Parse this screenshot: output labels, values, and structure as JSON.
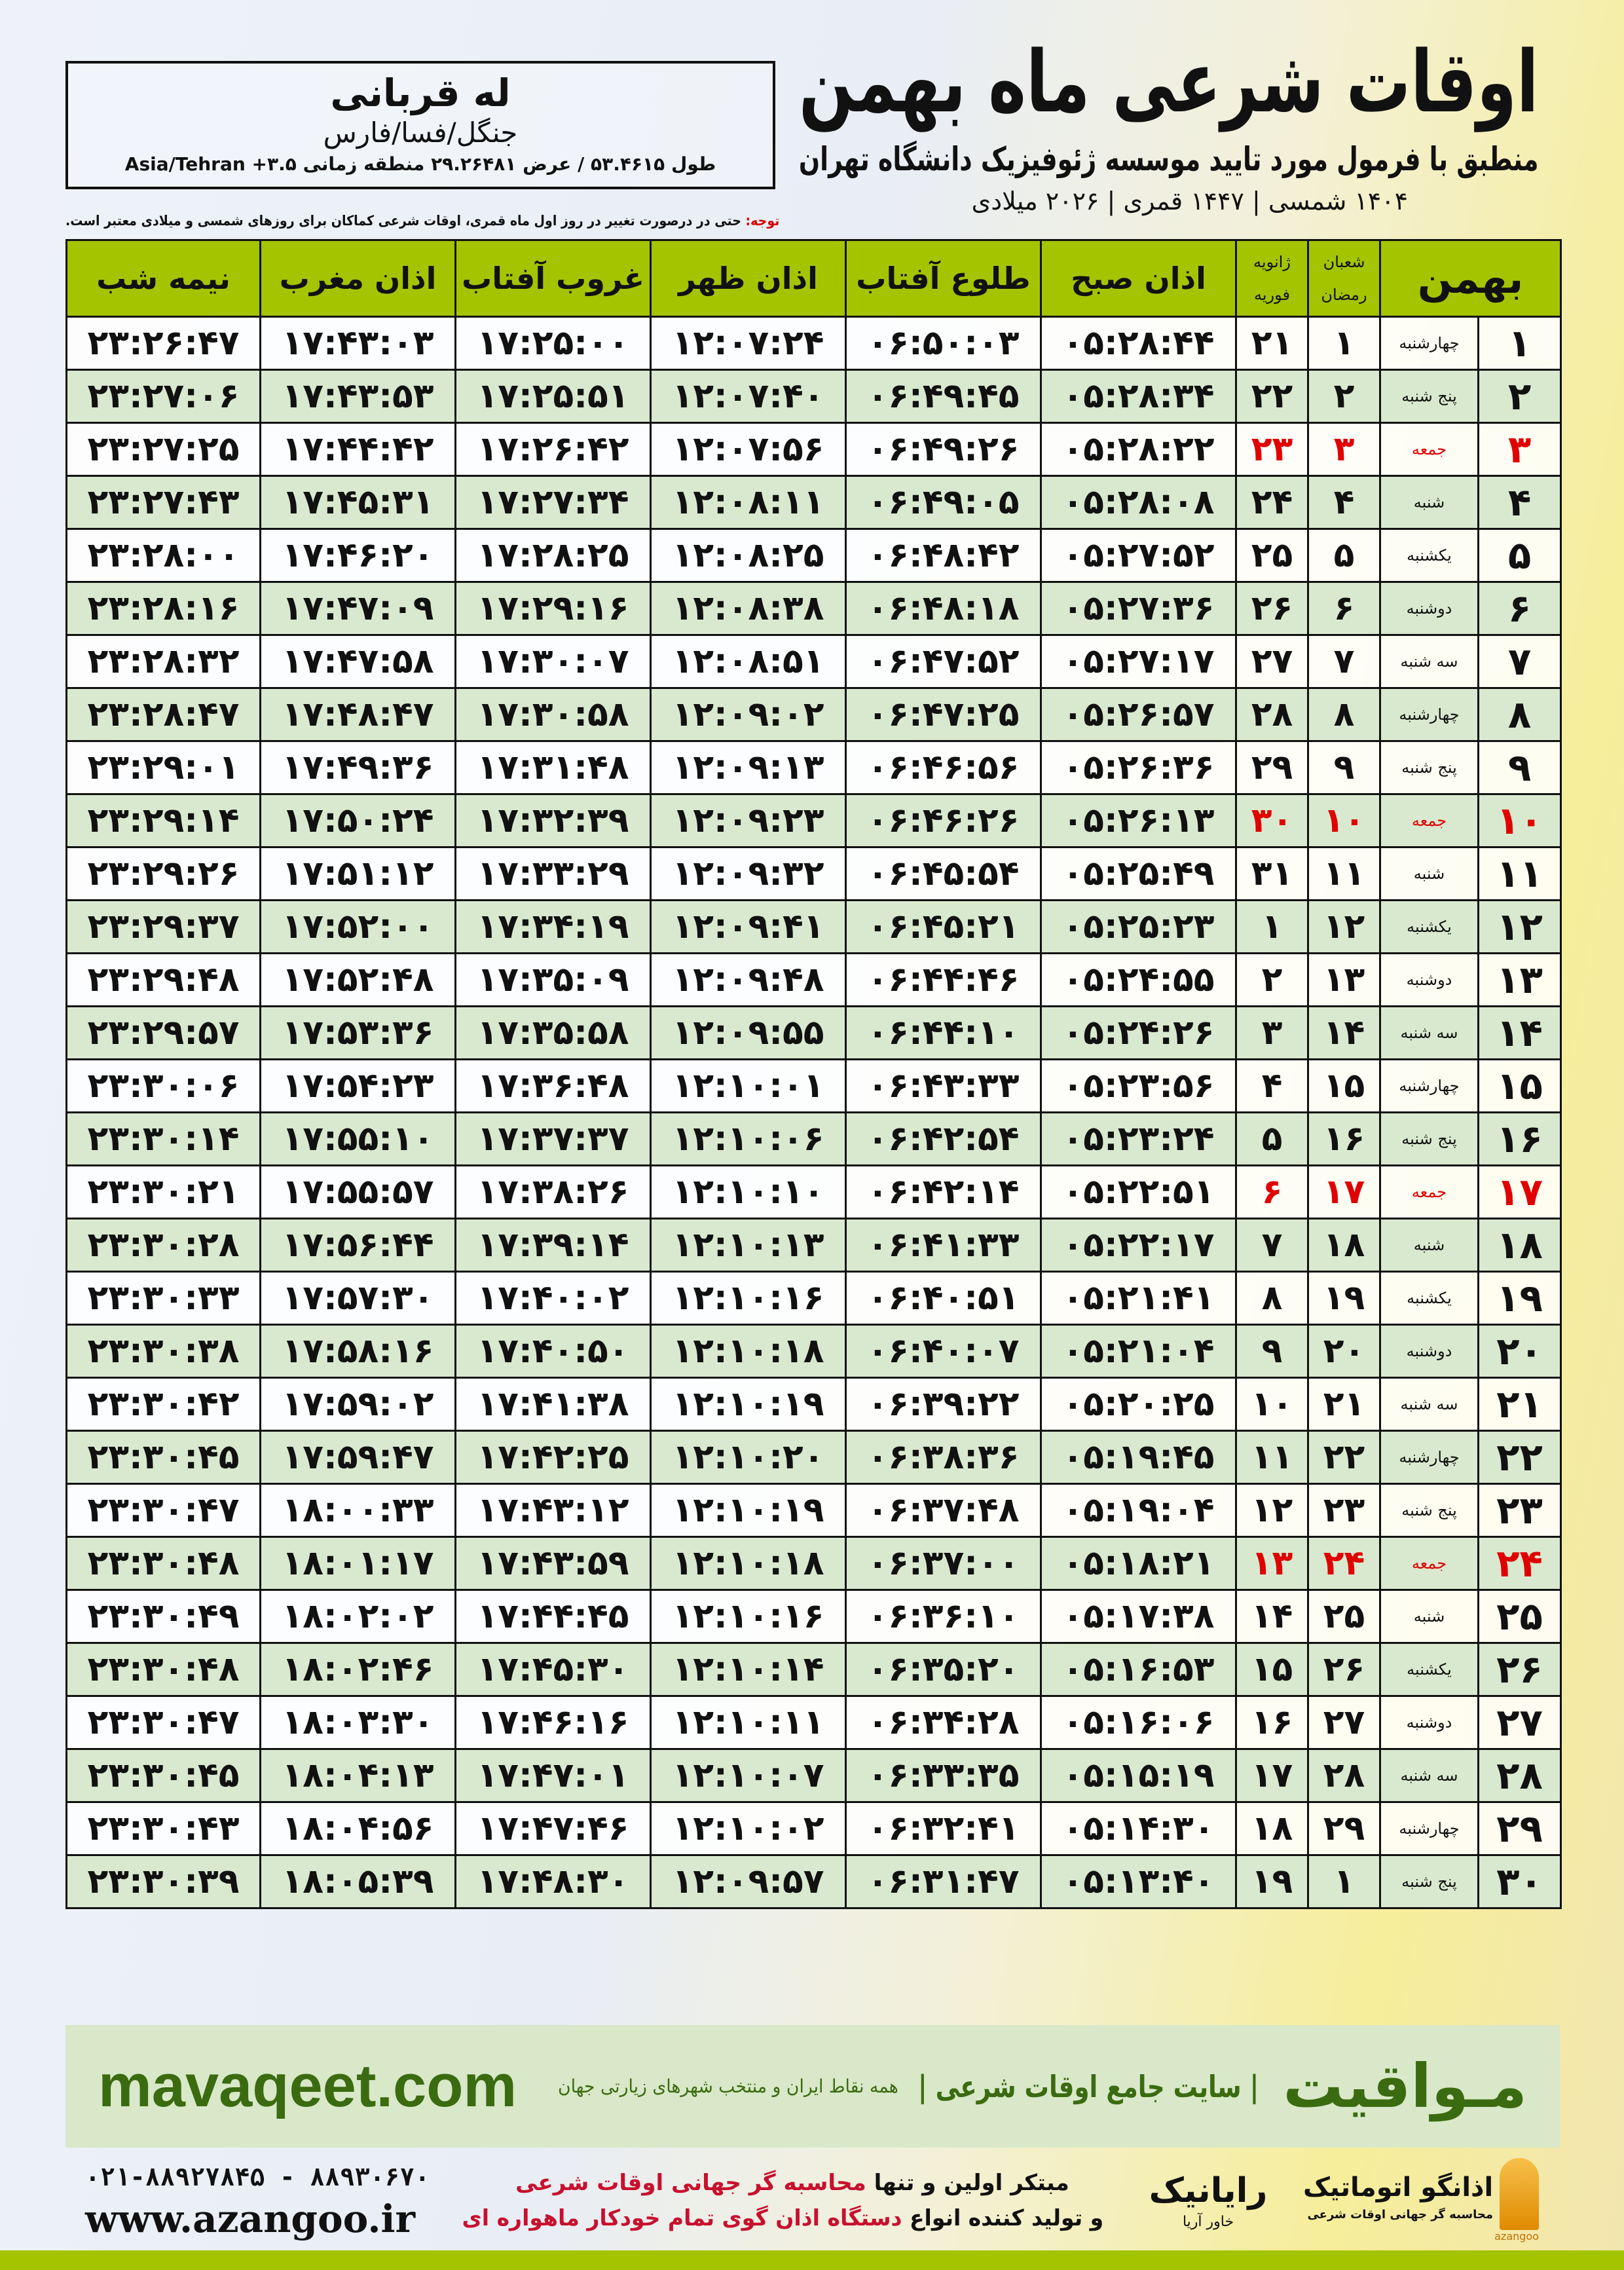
{
  "header": {
    "title": "اوقات شرعی ماه بهمن",
    "subtitle": "منطبق با فرمول مورد تایید موسسه ژئوفیزیک دانشگاه تهران",
    "dates": "۱۴۰۴ شمسی | ۱۴۴۷ قمری | ۲۰۲۶ میلادی"
  },
  "location": {
    "name": "له قربانی",
    "region": "جنگل/فسا/فارس",
    "coords": "طول ۵۳.۴۶۱۵ / عرض ۲۹.۲۶۴۸۱ منطقه زمانی ۳.۵+ Asia/Tehran"
  },
  "note": {
    "label": "توجه:",
    "text": " حتی در درصورت تغییر در روز اول ماه قمری، اوقات شرعی کماکان برای روزهای شمسی و میلادی معتبر است."
  },
  "colors": {
    "header_green": "#a5c400",
    "row_green": "#d9e9cf",
    "friday_red": "#e00000",
    "brand_green": "#3b6b10"
  },
  "table": {
    "columns": {
      "month": "بهمن",
      "hijri": [
        "شعبان",
        "رمضان"
      ],
      "greg": [
        "ژانویه",
        "فوریه"
      ],
      "fajr": "اذان صبح",
      "sunrise": "طلوع آفتاب",
      "dhuhr": "اذان ظهر",
      "sunset": "غروب آفتاب",
      "maghrib": "اذان مغرب",
      "midnight": "نیمه شب"
    },
    "rows": [
      {
        "day": "۱",
        "wd": "چهارشنبه",
        "hij": "۱",
        "greg": "۲۱",
        "fajr": "۰۵:۲۸:۴۴",
        "sunrise": "۰۶:۵۰:۰۳",
        "dhuhr": "۱۲:۰۷:۲۴",
        "sunset": "۱۷:۲۵:۰۰",
        "maghrib": "۱۷:۴۳:۰۳",
        "midnight": "۲۳:۲۶:۴۷",
        "friday": false
      },
      {
        "day": "۲",
        "wd": "پنج شنبه",
        "hij": "۲",
        "greg": "۲۲",
        "fajr": "۰۵:۲۸:۳۴",
        "sunrise": "۰۶:۴۹:۴۵",
        "dhuhr": "۱۲:۰۷:۴۰",
        "sunset": "۱۷:۲۵:۵۱",
        "maghrib": "۱۷:۴۳:۵۳",
        "midnight": "۲۳:۲۷:۰۶",
        "friday": false
      },
      {
        "day": "۳",
        "wd": "جمعه",
        "hij": "۳",
        "greg": "۲۳",
        "fajr": "۰۵:۲۸:۲۲",
        "sunrise": "۰۶:۴۹:۲۶",
        "dhuhr": "۱۲:۰۷:۵۶",
        "sunset": "۱۷:۲۶:۴۲",
        "maghrib": "۱۷:۴۴:۴۲",
        "midnight": "۲۳:۲۷:۲۵",
        "friday": true
      },
      {
        "day": "۴",
        "wd": "شنبه",
        "hij": "۴",
        "greg": "۲۴",
        "fajr": "۰۵:۲۸:۰۸",
        "sunrise": "۰۶:۴۹:۰۵",
        "dhuhr": "۱۲:۰۸:۱۱",
        "sunset": "۱۷:۲۷:۳۴",
        "maghrib": "۱۷:۴۵:۳۱",
        "midnight": "۲۳:۲۷:۴۳",
        "friday": false
      },
      {
        "day": "۵",
        "wd": "یکشنبه",
        "hij": "۵",
        "greg": "۲۵",
        "fajr": "۰۵:۲۷:۵۲",
        "sunrise": "۰۶:۴۸:۴۲",
        "dhuhr": "۱۲:۰۸:۲۵",
        "sunset": "۱۷:۲۸:۲۵",
        "maghrib": "۱۷:۴۶:۲۰",
        "midnight": "۲۳:۲۸:۰۰",
        "friday": false
      },
      {
        "day": "۶",
        "wd": "دوشنبه",
        "hij": "۶",
        "greg": "۲۶",
        "fajr": "۰۵:۲۷:۳۶",
        "sunrise": "۰۶:۴۸:۱۸",
        "dhuhr": "۱۲:۰۸:۳۸",
        "sunset": "۱۷:۲۹:۱۶",
        "maghrib": "۱۷:۴۷:۰۹",
        "midnight": "۲۳:۲۸:۱۶",
        "friday": false
      },
      {
        "day": "۷",
        "wd": "سه شنبه",
        "hij": "۷",
        "greg": "۲۷",
        "fajr": "۰۵:۲۷:۱۷",
        "sunrise": "۰۶:۴۷:۵۲",
        "dhuhr": "۱۲:۰۸:۵۱",
        "sunset": "۱۷:۳۰:۰۷",
        "maghrib": "۱۷:۴۷:۵۸",
        "midnight": "۲۳:۲۸:۳۲",
        "friday": false
      },
      {
        "day": "۸",
        "wd": "چهارشنبه",
        "hij": "۸",
        "greg": "۲۸",
        "fajr": "۰۵:۲۶:۵۷",
        "sunrise": "۰۶:۴۷:۲۵",
        "dhuhr": "۱۲:۰۹:۰۲",
        "sunset": "۱۷:۳۰:۵۸",
        "maghrib": "۱۷:۴۸:۴۷",
        "midnight": "۲۳:۲۸:۴۷",
        "friday": false
      },
      {
        "day": "۹",
        "wd": "پنج شنبه",
        "hij": "۹",
        "greg": "۲۹",
        "fajr": "۰۵:۲۶:۳۶",
        "sunrise": "۰۶:۴۶:۵۶",
        "dhuhr": "۱۲:۰۹:۱۳",
        "sunset": "۱۷:۳۱:۴۸",
        "maghrib": "۱۷:۴۹:۳۶",
        "midnight": "۲۳:۲۹:۰۱",
        "friday": false
      },
      {
        "day": "۱۰",
        "wd": "جمعه",
        "hij": "۱۰",
        "greg": "۳۰",
        "fajr": "۰۵:۲۶:۱۳",
        "sunrise": "۰۶:۴۶:۲۶",
        "dhuhr": "۱۲:۰۹:۲۳",
        "sunset": "۱۷:۳۲:۳۹",
        "maghrib": "۱۷:۵۰:۲۴",
        "midnight": "۲۳:۲۹:۱۴",
        "friday": true
      },
      {
        "day": "۱۱",
        "wd": "شنبه",
        "hij": "۱۱",
        "greg": "۳۱",
        "fajr": "۰۵:۲۵:۴۹",
        "sunrise": "۰۶:۴۵:۵۴",
        "dhuhr": "۱۲:۰۹:۳۲",
        "sunset": "۱۷:۳۳:۲۹",
        "maghrib": "۱۷:۵۱:۱۲",
        "midnight": "۲۳:۲۹:۲۶",
        "friday": false
      },
      {
        "day": "۱۲",
        "wd": "یکشنبه",
        "hij": "۱۲",
        "greg": "۱",
        "fajr": "۰۵:۲۵:۲۳",
        "sunrise": "۰۶:۴۵:۲۱",
        "dhuhr": "۱۲:۰۹:۴۱",
        "sunset": "۱۷:۳۴:۱۹",
        "maghrib": "۱۷:۵۲:۰۰",
        "midnight": "۲۳:۲۹:۳۷",
        "friday": false
      },
      {
        "day": "۱۳",
        "wd": "دوشنبه",
        "hij": "۱۳",
        "greg": "۲",
        "fajr": "۰۵:۲۴:۵۵",
        "sunrise": "۰۶:۴۴:۴۶",
        "dhuhr": "۱۲:۰۹:۴۸",
        "sunset": "۱۷:۳۵:۰۹",
        "maghrib": "۱۷:۵۲:۴۸",
        "midnight": "۲۳:۲۹:۴۸",
        "friday": false
      },
      {
        "day": "۱۴",
        "wd": "سه شنبه",
        "hij": "۱۴",
        "greg": "۳",
        "fajr": "۰۵:۲۴:۲۶",
        "sunrise": "۰۶:۴۴:۱۰",
        "dhuhr": "۱۲:۰۹:۵۵",
        "sunset": "۱۷:۳۵:۵۸",
        "maghrib": "۱۷:۵۳:۳۶",
        "midnight": "۲۳:۲۹:۵۷",
        "friday": false
      },
      {
        "day": "۱۵",
        "wd": "چهارشنبه",
        "hij": "۱۵",
        "greg": "۴",
        "fajr": "۰۵:۲۳:۵۶",
        "sunrise": "۰۶:۴۳:۳۳",
        "dhuhr": "۱۲:۱۰:۰۱",
        "sunset": "۱۷:۳۶:۴۸",
        "maghrib": "۱۷:۵۴:۲۳",
        "midnight": "۲۳:۳۰:۰۶",
        "friday": false
      },
      {
        "day": "۱۶",
        "wd": "پنج شنبه",
        "hij": "۱۶",
        "greg": "۵",
        "fajr": "۰۵:۲۳:۲۴",
        "sunrise": "۰۶:۴۲:۵۴",
        "dhuhr": "۱۲:۱۰:۰۶",
        "sunset": "۱۷:۳۷:۳۷",
        "maghrib": "۱۷:۵۵:۱۰",
        "midnight": "۲۳:۳۰:۱۴",
        "friday": false
      },
      {
        "day": "۱۷",
        "wd": "جمعه",
        "hij": "۱۷",
        "greg": "۶",
        "fajr": "۰۵:۲۲:۵۱",
        "sunrise": "۰۶:۴۲:۱۴",
        "dhuhr": "۱۲:۱۰:۱۰",
        "sunset": "۱۷:۳۸:۲۶",
        "maghrib": "۱۷:۵۵:۵۷",
        "midnight": "۲۳:۳۰:۲۱",
        "friday": true
      },
      {
        "day": "۱۸",
        "wd": "شنبه",
        "hij": "۱۸",
        "greg": "۷",
        "fajr": "۰۵:۲۲:۱۷",
        "sunrise": "۰۶:۴۱:۳۳",
        "dhuhr": "۱۲:۱۰:۱۳",
        "sunset": "۱۷:۳۹:۱۴",
        "maghrib": "۱۷:۵۶:۴۴",
        "midnight": "۲۳:۳۰:۲۸",
        "friday": false
      },
      {
        "day": "۱۹",
        "wd": "یکشنبه",
        "hij": "۱۹",
        "greg": "۸",
        "fajr": "۰۵:۲۱:۴۱",
        "sunrise": "۰۶:۴۰:۵۱",
        "dhuhr": "۱۲:۱۰:۱۶",
        "sunset": "۱۷:۴۰:۰۲",
        "maghrib": "۱۷:۵۷:۳۰",
        "midnight": "۲۳:۳۰:۳۳",
        "friday": false
      },
      {
        "day": "۲۰",
        "wd": "دوشنبه",
        "hij": "۲۰",
        "greg": "۹",
        "fajr": "۰۵:۲۱:۰۴",
        "sunrise": "۰۶:۴۰:۰۷",
        "dhuhr": "۱۲:۱۰:۱۸",
        "sunset": "۱۷:۴۰:۵۰",
        "maghrib": "۱۷:۵۸:۱۶",
        "midnight": "۲۳:۳۰:۳۸",
        "friday": false
      },
      {
        "day": "۲۱",
        "wd": "سه شنبه",
        "hij": "۲۱",
        "greg": "۱۰",
        "fajr": "۰۵:۲۰:۲۵",
        "sunrise": "۰۶:۳۹:۲۲",
        "dhuhr": "۱۲:۱۰:۱۹",
        "sunset": "۱۷:۴۱:۳۸",
        "maghrib": "۱۷:۵۹:۰۲",
        "midnight": "۲۳:۳۰:۴۲",
        "friday": false
      },
      {
        "day": "۲۲",
        "wd": "چهارشنبه",
        "hij": "۲۲",
        "greg": "۱۱",
        "fajr": "۰۵:۱۹:۴۵",
        "sunrise": "۰۶:۳۸:۳۶",
        "dhuhr": "۱۲:۱۰:۲۰",
        "sunset": "۱۷:۴۲:۲۵",
        "maghrib": "۱۷:۵۹:۴۷",
        "midnight": "۲۳:۳۰:۴۵",
        "friday": false
      },
      {
        "day": "۲۳",
        "wd": "پنج شنبه",
        "hij": "۲۳",
        "greg": "۱۲",
        "fajr": "۰۵:۱۹:۰۴",
        "sunrise": "۰۶:۳۷:۴۸",
        "dhuhr": "۱۲:۱۰:۱۹",
        "sunset": "۱۷:۴۳:۱۲",
        "maghrib": "۱۸:۰۰:۳۳",
        "midnight": "۲۳:۳۰:۴۷",
        "friday": false
      },
      {
        "day": "۲۴",
        "wd": "جمعه",
        "hij": "۲۴",
        "greg": "۱۳",
        "fajr": "۰۵:۱۸:۲۱",
        "sunrise": "۰۶:۳۷:۰۰",
        "dhuhr": "۱۲:۱۰:۱۸",
        "sunset": "۱۷:۴۳:۵۹",
        "maghrib": "۱۸:۰۱:۱۷",
        "midnight": "۲۳:۳۰:۴۸",
        "friday": true
      },
      {
        "day": "۲۵",
        "wd": "شنبه",
        "hij": "۲۵",
        "greg": "۱۴",
        "fajr": "۰۵:۱۷:۳۸",
        "sunrise": "۰۶:۳۶:۱۰",
        "dhuhr": "۱۲:۱۰:۱۶",
        "sunset": "۱۷:۴۴:۴۵",
        "maghrib": "۱۸:۰۲:۰۲",
        "midnight": "۲۳:۳۰:۴۹",
        "friday": false
      },
      {
        "day": "۲۶",
        "wd": "یکشنبه",
        "hij": "۲۶",
        "greg": "۱۵",
        "fajr": "۰۵:۱۶:۵۳",
        "sunrise": "۰۶:۳۵:۲۰",
        "dhuhr": "۱۲:۱۰:۱۴",
        "sunset": "۱۷:۴۵:۳۰",
        "maghrib": "۱۸:۰۲:۴۶",
        "midnight": "۲۳:۳۰:۴۸",
        "friday": false
      },
      {
        "day": "۲۷",
        "wd": "دوشنبه",
        "hij": "۲۷",
        "greg": "۱۶",
        "fajr": "۰۵:۱۶:۰۶",
        "sunrise": "۰۶:۳۴:۲۸",
        "dhuhr": "۱۲:۱۰:۱۱",
        "sunset": "۱۷:۴۶:۱۶",
        "maghrib": "۱۸:۰۳:۳۰",
        "midnight": "۲۳:۳۰:۴۷",
        "friday": false
      },
      {
        "day": "۲۸",
        "wd": "سه شنبه",
        "hij": "۲۸",
        "greg": "۱۷",
        "fajr": "۰۵:۱۵:۱۹",
        "sunrise": "۰۶:۳۳:۳۵",
        "dhuhr": "۱۲:۱۰:۰۷",
        "sunset": "۱۷:۴۷:۰۱",
        "maghrib": "۱۸:۰۴:۱۳",
        "midnight": "۲۳:۳۰:۴۵",
        "friday": false
      },
      {
        "day": "۲۹",
        "wd": "چهارشنبه",
        "hij": "۲۹",
        "greg": "۱۸",
        "fajr": "۰۵:۱۴:۳۰",
        "sunrise": "۰۶:۳۲:۴۱",
        "dhuhr": "۱۲:۱۰:۰۲",
        "sunset": "۱۷:۴۷:۴۶",
        "maghrib": "۱۸:۰۴:۵۶",
        "midnight": "۲۳:۳۰:۴۳",
        "friday": false
      },
      {
        "day": "۳۰",
        "wd": "پنج شنبه",
        "hij": "۱",
        "greg": "۱۹",
        "fajr": "۰۵:۱۳:۴۰",
        "sunrise": "۰۶:۳۱:۴۷",
        "dhuhr": "۱۲:۰۹:۵۷",
        "sunset": "۱۷:۴۸:۳۰",
        "maghrib": "۱۸:۰۵:۳۹",
        "midnight": "۲۳:۳۰:۳۹",
        "friday": false
      }
    ]
  },
  "footer": {
    "brand": "مـواقیت",
    "slogan": "| سایت جامع اوقات شرعی |",
    "slogan_sub": "همه نقاط ایران و منتخب شهرهای زیارتی جهان",
    "site": "mavaqeet.com",
    "promo_line1_a": "مبتکر اولین و تنها ",
    "promo_line1_b": "محاسبه گر جهانی اوقات شرعی",
    "promo_line2_a": "و تولید کننده انواع ",
    "promo_line2_b": "دستگاه اذان گوی تمام خودکار ماهواره ای",
    "phone": "۰۲۱-۸۸۹۲۷۸۴۵ - ۸۸۹۳۰۶۷۰",
    "web": "www.azangoo.ir",
    "logo_raya": "رایانیک",
    "logo_raya_sub": "خاور آریا",
    "logo_azangoo": "اذانگو اتوماتیک",
    "logo_azangoo_sub": "محاسبه گر جهانی اوقات شرعی",
    "logo_azangoo_en": "azangoo"
  }
}
